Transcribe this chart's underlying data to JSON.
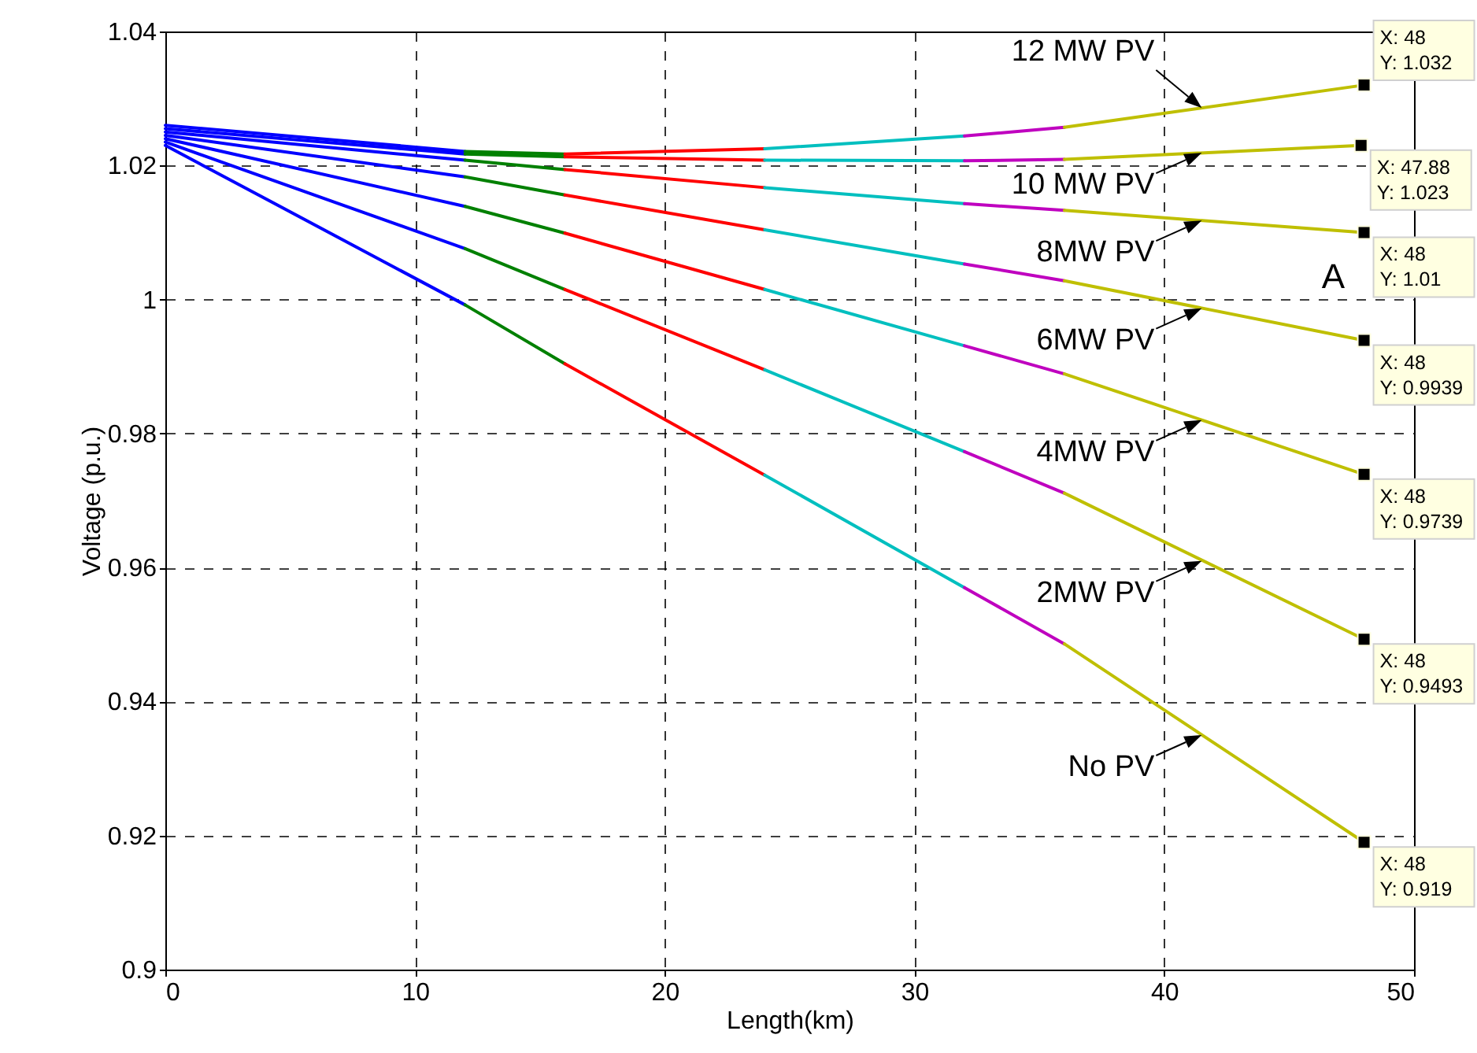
{
  "chart_data": {
    "type": "line",
    "xlabel": "Length(km)",
    "ylabel": "Voltage (p.u.)",
    "xlim": [
      0,
      50
    ],
    "xticks": [
      0,
      10,
      20,
      30,
      40,
      50
    ],
    "ylim": [
      0.9,
      1.04
    ],
    "yticks": [
      0.9,
      0.92,
      0.94,
      0.96,
      0.98,
      1,
      1.02,
      1.04
    ],
    "grid": true,
    "series": [
      {
        "color": "#0000ff",
        "x": [
          0,
          12
        ],
        "values": [
          1.026,
          1.0221
        ]
      },
      {
        "color": "#008000",
        "x": [
          12,
          16
        ],
        "values": [
          1.0221,
          1.0217
        ]
      },
      {
        "color": "#ff0000",
        "x": [
          16,
          24
        ],
        "values": [
          1.0217,
          1.0225
        ]
      },
      {
        "color": "#00bfbf",
        "x": [
          24,
          32
        ],
        "values": [
          1.0225,
          1.0244
        ]
      },
      {
        "color": "#bf00bf",
        "x": [
          32,
          36
        ],
        "values": [
          1.0244,
          1.0257
        ]
      },
      {
        "color": "#bfbf00",
        "x": [
          36,
          48
        ],
        "values": [
          1.0257,
          1.032
        ]
      },
      {
        "color": "#0000ff",
        "x": [
          0,
          12
        ],
        "values": [
          1.0255,
          1.0217
        ]
      },
      {
        "color": "#008000",
        "x": [
          12,
          16
        ],
        "values": [
          1.0217,
          1.0213
        ]
      },
      {
        "color": "#ff0000",
        "x": [
          16,
          24
        ],
        "values": [
          1.0213,
          1.0208
        ]
      },
      {
        "color": "#00bfbf",
        "x": [
          24,
          32
        ],
        "values": [
          1.0208,
          1.0207
        ]
      },
      {
        "color": "#bf00bf",
        "x": [
          32,
          36
        ],
        "values": [
          1.0207,
          1.0209
        ]
      },
      {
        "color": "#bfbf00",
        "x": [
          36,
          47.88
        ],
        "values": [
          1.0209,
          1.023
        ]
      },
      {
        "color": "#0000ff",
        "x": [
          0,
          12
        ],
        "values": [
          1.025,
          1.0208
        ]
      },
      {
        "color": "#008000",
        "x": [
          12,
          16
        ],
        "values": [
          1.0208,
          1.0194
        ]
      },
      {
        "color": "#ff0000",
        "x": [
          16,
          24
        ],
        "values": [
          1.0194,
          1.0167
        ]
      },
      {
        "color": "#00bfbf",
        "x": [
          24,
          32
        ],
        "values": [
          1.0167,
          1.0143
        ]
      },
      {
        "color": "#bf00bf",
        "x": [
          32,
          36
        ],
        "values": [
          1.0143,
          1.0133
        ]
      },
      {
        "color": "#bfbf00",
        "x": [
          36,
          48
        ],
        "values": [
          1.0133,
          1.01
        ]
      },
      {
        "color": "#0000ff",
        "x": [
          0,
          12
        ],
        "values": [
          1.0245,
          1.0183
        ]
      },
      {
        "color": "#008000",
        "x": [
          12,
          16
        ],
        "values": [
          1.0183,
          1.0156
        ]
      },
      {
        "color": "#ff0000",
        "x": [
          16,
          24
        ],
        "values": [
          1.0156,
          1.0104
        ]
      },
      {
        "color": "#00bfbf",
        "x": [
          24,
          32
        ],
        "values": [
          1.0104,
          1.0053
        ]
      },
      {
        "color": "#bf00bf",
        "x": [
          32,
          36
        ],
        "values": [
          1.0053,
          1.0028
        ]
      },
      {
        "color": "#bfbf00",
        "x": [
          36,
          48
        ],
        "values": [
          1.0028,
          0.9939
        ]
      },
      {
        "color": "#0000ff",
        "x": [
          0,
          12
        ],
        "values": [
          1.024,
          1.0139
        ]
      },
      {
        "color": "#008000",
        "x": [
          12,
          16
        ],
        "values": [
          1.0139,
          1.0099
        ]
      },
      {
        "color": "#ff0000",
        "x": [
          16,
          24
        ],
        "values": [
          1.0099,
          1.0015
        ]
      },
      {
        "color": "#00bfbf",
        "x": [
          24,
          32
        ],
        "values": [
          1.0015,
          0.9931
        ]
      },
      {
        "color": "#bf00bf",
        "x": [
          32,
          36
        ],
        "values": [
          0.9931,
          0.9889
        ]
      },
      {
        "color": "#bfbf00",
        "x": [
          36,
          48
        ],
        "values": [
          0.9889,
          0.9739
        ]
      },
      {
        "color": "#0000ff",
        "x": [
          0,
          12
        ],
        "values": [
          1.0235,
          1.0076
        ]
      },
      {
        "color": "#008000",
        "x": [
          12,
          16
        ],
        "values": [
          1.0076,
          1.0015
        ]
      },
      {
        "color": "#ff0000",
        "x": [
          16,
          24
        ],
        "values": [
          1.0015,
          0.9895
        ]
      },
      {
        "color": "#00bfbf",
        "x": [
          24,
          32
        ],
        "values": [
          0.9895,
          0.9773
        ]
      },
      {
        "color": "#bf00bf",
        "x": [
          32,
          36
        ],
        "values": [
          0.9773,
          0.9711
        ]
      },
      {
        "color": "#bfbf00",
        "x": [
          36,
          48
        ],
        "values": [
          0.9711,
          0.9493
        ]
      },
      {
        "color": "#0000ff",
        "x": [
          0,
          12
        ],
        "values": [
          1.023,
          0.9992
        ]
      },
      {
        "color": "#008000",
        "x": [
          12,
          16
        ],
        "values": [
          0.9992,
          0.9904
        ]
      },
      {
        "color": "#ff0000",
        "x": [
          16,
          24
        ],
        "values": [
          0.9904,
          0.9738
        ]
      },
      {
        "color": "#00bfbf",
        "x": [
          24,
          32
        ],
        "values": [
          0.9738,
          0.957
        ]
      },
      {
        "color": "#bf00bf",
        "x": [
          32,
          36
        ],
        "values": [
          0.957,
          0.9486
        ]
      },
      {
        "color": "#bfbf00",
        "x": [
          36,
          48
        ],
        "values": [
          0.9486,
          0.919
        ]
      }
    ],
    "annotations": [
      {
        "text": "12 MW PV",
        "x": 41.5,
        "y": 1.0286
      },
      {
        "text": "10 MW PV",
        "x": 41.5,
        "y": 1.0219
      },
      {
        "text": "8MW PV",
        "x": 41.5,
        "y": 1.0118
      },
      {
        "text": "6MW PV",
        "x": 41.5,
        "y": 0.9987
      },
      {
        "text": "4MW PV",
        "x": 41.5,
        "y": 0.982
      },
      {
        "text": "2MW PV",
        "x": 41.5,
        "y": 0.961
      },
      {
        "text": "No PV",
        "x": 41.5,
        "y": 0.935
      },
      {
        "text": "X: 48\nY: 1.032",
        "x": 48,
        "y": 1.032
      },
      {
        "text": "X: 47.88\nY: 1.023",
        "x": 47.88,
        "y": 1.023
      },
      {
        "text": "X: 48\nY: 1.01",
        "x": 48,
        "y": 1.01
      },
      {
        "text": "X: 48\nY: 0.9939",
        "x": 48,
        "y": 0.9939
      },
      {
        "text": "X: 48\nY: 0.9739",
        "x": 48,
        "y": 0.9739
      },
      {
        "text": "X: 48\nY: 0.9493",
        "x": 48,
        "y": 0.9493
      },
      {
        "text": "X: 48\nY: 0.919",
        "x": 48,
        "y": 0.919
      },
      "A"
    ]
  }
}
